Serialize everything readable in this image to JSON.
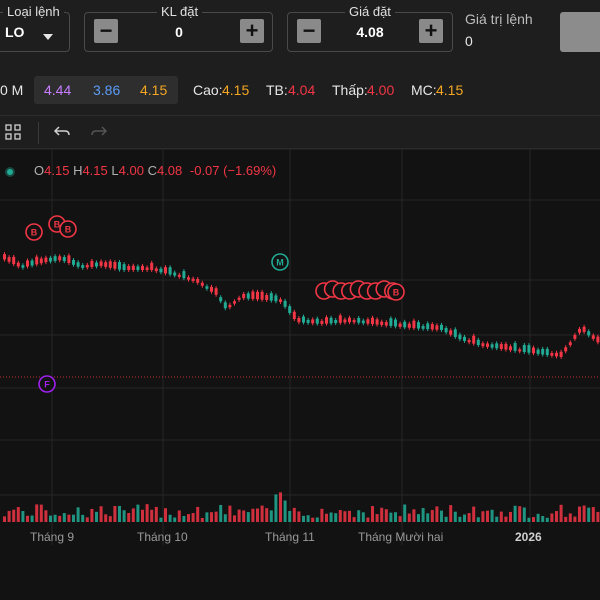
{
  "order": {
    "type_label": "Loại lệnh",
    "type_value": "LO",
    "qty_label": "KL đặt",
    "qty_value": "0",
    "qty_minus": "−",
    "qty_plus": "+",
    "price_label": "Giá đặt",
    "price_value": "4.08",
    "price_minus": "−",
    "price_plus": "+",
    "value_label": "Giá trị lệnh",
    "value_value": "0"
  },
  "ticker": {
    "prefix": "0 M",
    "ceiling": "4.44",
    "floor": "3.86",
    "ref": "4.15",
    "high_label": "Cao:",
    "high": "4.15",
    "avg_label": "TB:",
    "avg": "4.04",
    "low_label": "Thấp:",
    "low": "4.00",
    "match_label": "MC:",
    "match": "4.15"
  },
  "ohlc": {
    "o_label": "O",
    "o": "4.15",
    "h_label": "H",
    "h": "4.15",
    "l_label": "L",
    "l": "4.00",
    "c_label": "C",
    "c": "4.08",
    "change": "-0.07 (−1.69%)"
  },
  "markers": {
    "b": "B",
    "m": "M",
    "f": "F"
  },
  "x_axis": [
    "Tháng 9",
    "Tháng 10",
    "Tháng 11",
    "Tháng Mười hai",
    "2026"
  ],
  "icons": {
    "layout": "grid-icon",
    "undo": "undo-icon",
    "redo": "redo-icon",
    "dropdown": "caret-down-icon",
    "status": "status-dot-icon"
  },
  "colors": {
    "up": "#22ab94",
    "down": "#f23645",
    "ceiling": "#c77dff",
    "floor": "#5b9cf6",
    "ref": "#f5a623",
    "marker_b": "#f23645",
    "marker_m": "#22ab94",
    "marker_f": "#a020f0"
  }
}
